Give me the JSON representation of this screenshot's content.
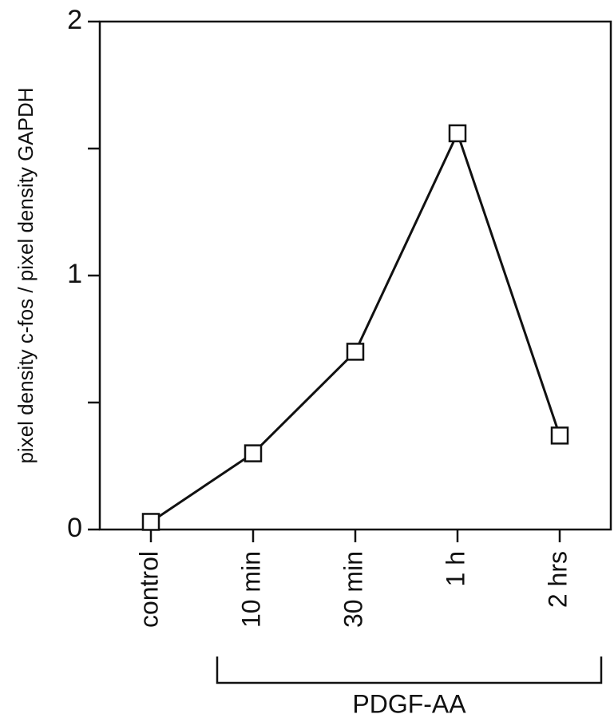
{
  "chart_data": {
    "type": "line",
    "ylabel": "pixel density c-fos / pixel density GAPDH",
    "categories": [
      "control",
      "10 min",
      "30 min",
      "1 h",
      "2 hrs"
    ],
    "values": [
      0.03,
      0.3,
      0.7,
      1.56,
      0.37
    ],
    "color": "#111111",
    "marker": "square",
    "ylim": [
      0,
      2
    ],
    "yticks": [
      0,
      1,
      2
    ],
    "yminorticks": [
      0.5,
      1.5
    ],
    "group_label": "PDGF-AA",
    "group_range": [
      1,
      4
    ]
  }
}
